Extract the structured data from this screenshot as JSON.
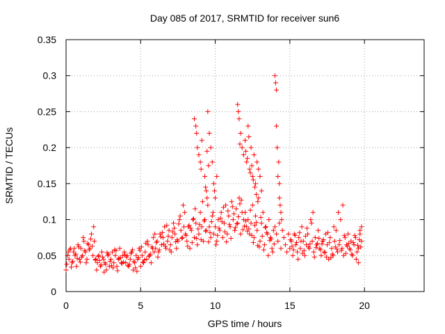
{
  "chart_data": {
    "type": "scatter",
    "title": "Day 085 of 2017, SRMTID for receiver sun6",
    "xlabel": "GPS time / hours",
    "ylabel": "SRMTID / TECUs",
    "xlim": [
      0,
      24
    ],
    "ylim": [
      0,
      0.35
    ],
    "x_ticks": [
      0,
      5,
      10,
      15,
      20
    ],
    "x_tick_labels": [
      "0",
      "5",
      "10",
      "15",
      "20"
    ],
    "y_ticks": [
      0,
      0.05,
      0.1,
      0.15,
      0.2,
      0.25,
      0.3,
      0.35
    ],
    "y_tick_labels": [
      "0",
      "0.05",
      "0.1",
      "0.15",
      "0.2",
      "0.25",
      "0.3",
      "0.35"
    ],
    "grid": true,
    "marker": "plus",
    "series_color": "#ff0000",
    "series": [
      {
        "name": "SRMTID",
        "x": [
          0.0,
          0.1,
          0.2,
          0.3,
          0.4,
          0.5,
          0.6,
          0.7,
          0.8,
          0.9,
          1.0,
          1.1,
          1.2,
          1.3,
          1.4,
          1.5,
          1.6,
          1.7,
          1.8,
          1.9,
          0.05,
          0.25,
          0.45,
          0.65,
          0.85,
          1.05,
          1.25,
          1.45,
          1.65,
          1.85,
          0.15,
          0.35,
          0.55,
          0.75,
          0.95,
          1.15,
          1.35,
          1.55,
          1.75,
          1.95,
          2.0,
          2.1,
          2.2,
          2.3,
          2.4,
          2.5,
          2.6,
          2.7,
          2.8,
          2.9,
          3.0,
          3.1,
          3.2,
          3.3,
          3.4,
          3.5,
          3.6,
          3.7,
          3.8,
          3.9,
          2.05,
          2.25,
          2.45,
          2.65,
          2.85,
          3.05,
          3.25,
          3.45,
          3.65,
          3.85,
          2.15,
          2.35,
          2.55,
          2.75,
          2.95,
          3.15,
          3.35,
          3.55,
          3.75,
          3.95,
          4.0,
          4.1,
          4.2,
          4.3,
          4.4,
          4.5,
          4.6,
          4.7,
          4.8,
          4.9,
          5.0,
          5.1,
          5.2,
          5.3,
          5.4,
          5.5,
          5.6,
          5.7,
          5.8,
          5.9,
          4.05,
          4.25,
          4.45,
          4.65,
          4.85,
          5.05,
          5.25,
          5.45,
          5.65,
          5.85,
          4.15,
          4.35,
          4.55,
          4.75,
          4.95,
          5.15,
          5.35,
          5.55,
          5.75,
          5.95,
          6.0,
          6.1,
          6.2,
          6.3,
          6.4,
          6.5,
          6.6,
          6.7,
          6.8,
          6.9,
          7.0,
          7.1,
          7.2,
          7.3,
          7.4,
          7.5,
          7.6,
          7.7,
          7.8,
          7.9,
          6.05,
          6.25,
          6.45,
          6.65,
          6.85,
          7.05,
          7.25,
          7.45,
          7.65,
          7.85,
          6.15,
          6.35,
          6.55,
          6.75,
          6.95,
          7.15,
          7.35,
          7.55,
          7.75,
          7.95,
          8.0,
          8.1,
          8.2,
          8.3,
          8.4,
          8.5,
          8.6,
          8.7,
          8.8,
          8.9,
          9.0,
          9.1,
          9.2,
          9.3,
          9.4,
          9.5,
          9.6,
          9.7,
          9.8,
          9.9,
          8.05,
          8.25,
          8.45,
          8.65,
          8.85,
          9.05,
          9.25,
          9.45,
          9.65,
          9.85,
          8.15,
          8.35,
          8.55,
          8.75,
          8.95,
          9.15,
          9.35,
          9.55,
          9.75,
          9.95,
          8.6,
          8.7,
          8.8,
          8.9,
          9.0,
          9.1,
          9.3,
          9.4,
          9.5,
          9.6,
          9.7,
          9.8,
          9.9,
          10.0,
          10.1,
          8.75,
          9.05,
          9.35,
          9.45,
          9.55,
          10.0,
          10.1,
          10.2,
          10.3,
          10.4,
          10.5,
          10.6,
          10.7,
          10.8,
          10.9,
          11.0,
          11.1,
          11.2,
          11.3,
          11.4,
          11.5,
          11.6,
          11.7,
          11.8,
          11.9,
          10.05,
          10.25,
          10.45,
          10.65,
          10.85,
          11.05,
          11.25,
          11.45,
          11.65,
          11.85,
          10.15,
          10.35,
          10.55,
          10.75,
          10.95,
          11.15,
          11.35,
          11.55,
          11.75,
          11.95,
          11.5,
          11.6,
          11.7,
          11.8,
          11.9,
          12.0,
          12.1,
          12.2,
          12.3,
          12.4,
          12.5,
          12.6,
          12.7,
          12.8,
          12.9,
          13.0,
          13.1,
          11.55,
          11.65,
          12.05,
          12.15,
          12.25,
          12.35,
          12.45,
          12.55,
          12.65,
          12.75,
          12.85,
          12.0,
          12.1,
          12.2,
          12.3,
          12.4,
          12.5,
          12.6,
          12.7,
          12.8,
          12.9,
          13.0,
          13.1,
          13.2,
          13.3,
          13.4,
          13.5,
          13.6,
          13.7,
          13.8,
          13.9,
          12.05,
          12.25,
          12.45,
          12.65,
          12.85,
          13.05,
          13.25,
          13.45,
          13.65,
          13.85,
          12.15,
          12.35,
          12.55,
          12.75,
          12.95,
          13.15,
          13.35,
          13.55,
          13.75,
          13.95,
          14.0,
          14.05,
          14.1,
          14.1,
          14.15,
          14.2,
          14.25,
          14.3,
          14.3,
          14.35,
          14.4,
          14.45,
          14.0,
          14.1,
          14.2,
          14.3,
          14.4,
          14.5,
          14.6,
          14.7,
          14.8,
          14.9,
          15.0,
          15.1,
          15.2,
          15.3,
          15.4,
          15.5,
          15.6,
          15.7,
          15.8,
          15.9,
          16.0,
          16.1,
          16.2,
          16.3,
          16.4,
          16.5,
          16.6,
          16.7,
          16.8,
          16.9,
          15.05,
          15.25,
          15.45,
          15.65,
          15.85,
          16.05,
          16.25,
          16.45,
          16.65,
          16.85,
          15.15,
          15.35,
          15.55,
          15.75,
          15.95,
          16.15,
          16.35,
          16.55,
          16.75,
          16.95,
          17.0,
          17.1,
          17.2,
          17.3,
          17.4,
          17.5,
          17.6,
          17.7,
          17.8,
          17.9,
          18.0,
          18.1,
          18.2,
          18.3,
          18.4,
          18.5,
          18.6,
          18.7,
          18.8,
          18.9,
          17.05,
          17.25,
          17.45,
          17.65,
          17.85,
          18.05,
          18.25,
          18.45,
          18.65,
          18.85,
          17.15,
          17.35,
          17.55,
          17.75,
          17.95,
          18.15,
          18.35,
          18.55,
          18.75,
          18.95,
          19.0,
          19.1,
          19.2,
          19.3,
          19.4,
          19.5,
          19.6,
          19.7,
          19.8,
          19.05,
          19.25,
          19.45,
          19.65,
          19.75,
          19.15,
          19.35,
          19.55,
          19.7,
          19.8,
          19.6
        ],
        "y": [
          0.03,
          0.05,
          0.045,
          0.06,
          0.04,
          0.055,
          0.05,
          0.035,
          0.065,
          0.045,
          0.06,
          0.05,
          0.07,
          0.055,
          0.045,
          0.065,
          0.06,
          0.08,
          0.05,
          0.07,
          0.038,
          0.058,
          0.042,
          0.052,
          0.062,
          0.048,
          0.057,
          0.067,
          0.073,
          0.09,
          0.055,
          0.034,
          0.06,
          0.046,
          0.041,
          0.075,
          0.04,
          0.058,
          0.063,
          0.044,
          0.045,
          0.04,
          0.05,
          0.035,
          0.055,
          0.045,
          0.04,
          0.03,
          0.05,
          0.035,
          0.045,
          0.055,
          0.04,
          0.05,
          0.035,
          0.045,
          0.06,
          0.04,
          0.05,
          0.055,
          0.03,
          0.043,
          0.048,
          0.038,
          0.052,
          0.036,
          0.058,
          0.029,
          0.047,
          0.041,
          0.049,
          0.037,
          0.027,
          0.054,
          0.042,
          0.033,
          0.057,
          0.046,
          0.039,
          0.051,
          0.04,
          0.05,
          0.035,
          0.045,
          0.055,
          0.03,
          0.04,
          0.05,
          0.045,
          0.06,
          0.035,
          0.05,
          0.04,
          0.055,
          0.045,
          0.065,
          0.05,
          0.04,
          0.06,
          0.055,
          0.048,
          0.038,
          0.058,
          0.033,
          0.047,
          0.062,
          0.044,
          0.07,
          0.052,
          0.075,
          0.036,
          0.053,
          0.042,
          0.028,
          0.057,
          0.041,
          0.067,
          0.049,
          0.062,
          0.08,
          0.06,
          0.07,
          0.055,
          0.08,
          0.065,
          0.075,
          0.09,
          0.06,
          0.07,
          0.085,
          0.065,
          0.075,
          0.095,
          0.08,
          0.06,
          0.07,
          0.1,
          0.085,
          0.075,
          0.09,
          0.068,
          0.058,
          0.082,
          0.063,
          0.077,
          0.055,
          0.088,
          0.072,
          0.105,
          0.12,
          0.048,
          0.076,
          0.066,
          0.092,
          0.058,
          0.083,
          0.069,
          0.094,
          0.074,
          0.11,
          0.08,
          0.07,
          0.09,
          0.06,
          0.085,
          0.1,
          0.075,
          0.095,
          0.065,
          0.08,
          0.11,
          0.09,
          0.07,
          0.1,
          0.085,
          0.12,
          0.09,
          0.075,
          0.105,
          0.08,
          0.078,
          0.092,
          0.068,
          0.115,
          0.087,
          0.072,
          0.098,
          0.13,
          0.082,
          0.11,
          0.063,
          0.088,
          0.101,
          0.074,
          0.093,
          0.125,
          0.084,
          0.069,
          0.097,
          0.14,
          0.24,
          0.23,
          0.2,
          0.19,
          0.18,
          0.21,
          0.16,
          0.14,
          0.25,
          0.22,
          0.2,
          0.18,
          0.15,
          0.13,
          0.16,
          0.22,
          0.17,
          0.145,
          0.195,
          0.175,
          0.09,
          0.07,
          0.1,
          0.085,
          0.11,
          0.075,
          0.095,
          0.12,
          0.08,
          0.105,
          0.09,
          0.125,
          0.1,
          0.085,
          0.115,
          0.095,
          0.13,
          0.08,
          0.11,
          0.1,
          0.065,
          0.088,
          0.097,
          0.083,
          0.112,
          0.074,
          0.108,
          0.094,
          0.122,
          0.086,
          0.078,
          0.102,
          0.117,
          0.069,
          0.093,
          0.118,
          0.089,
          0.104,
          0.127,
          0.091,
          0.26,
          0.24,
          0.22,
          0.2,
          0.19,
          0.21,
          0.18,
          0.23,
          0.17,
          0.2,
          0.16,
          0.19,
          0.15,
          0.18,
          0.17,
          0.16,
          0.14,
          0.25,
          0.205,
          0.195,
          0.185,
          0.215,
          0.165,
          0.175,
          0.155,
          0.145,
          0.135,
          0.125,
          0.11,
          0.09,
          0.1,
          0.08,
          0.095,
          0.12,
          0.075,
          0.105,
          0.085,
          0.13,
          0.07,
          0.095,
          0.11,
          0.065,
          0.09,
          0.08,
          0.1,
          0.075,
          0.06,
          0.085,
          0.098,
          0.087,
          0.078,
          0.092,
          0.064,
          0.103,
          0.058,
          0.082,
          0.071,
          0.055,
          0.084,
          0.113,
          0.068,
          0.096,
          0.062,
          0.077,
          0.089,
          0.05,
          0.073,
          0.066,
          0.3,
          0.29,
          0.28,
          0.23,
          0.2,
          0.16,
          0.18,
          0.15,
          0.13,
          0.12,
          0.11,
          0.1,
          0.09,
          0.08,
          0.07,
          0.095,
          0.06,
          0.085,
          0.075,
          0.065,
          0.055,
          0.08,
          0.06,
          0.07,
          0.05,
          0.08,
          0.065,
          0.055,
          0.075,
          0.06,
          0.09,
          0.07,
          0.05,
          0.065,
          0.08,
          0.06,
          0.1,
          0.07,
          0.055,
          0.075,
          0.065,
          0.085,
          0.072,
          0.058,
          0.068,
          0.082,
          0.053,
          0.077,
          0.062,
          0.095,
          0.048,
          0.067,
          0.063,
          0.078,
          0.045,
          0.07,
          0.057,
          0.088,
          0.066,
          0.11,
          0.061,
          0.074,
          0.06,
          0.05,
          0.07,
          0.055,
          0.08,
          0.065,
          0.045,
          0.075,
          0.06,
          0.05,
          0.07,
          0.085,
          0.055,
          0.065,
          0.1,
          0.06,
          0.05,
          0.075,
          0.065,
          0.08,
          0.058,
          0.072,
          0.048,
          0.068,
          0.052,
          0.062,
          0.11,
          0.057,
          0.078,
          0.063,
          0.066,
          0.054,
          0.082,
          0.047,
          0.09,
          0.059,
          0.071,
          0.12,
          0.053,
          0.067,
          0.06,
          0.07,
          0.05,
          0.065,
          0.075,
          0.055,
          0.06,
          0.08,
          0.07,
          0.058,
          0.068,
          0.045,
          0.072,
          0.062,
          0.052,
          0.078,
          0.064,
          0.085,
          0.09,
          0.04
        ]
      }
    ]
  }
}
